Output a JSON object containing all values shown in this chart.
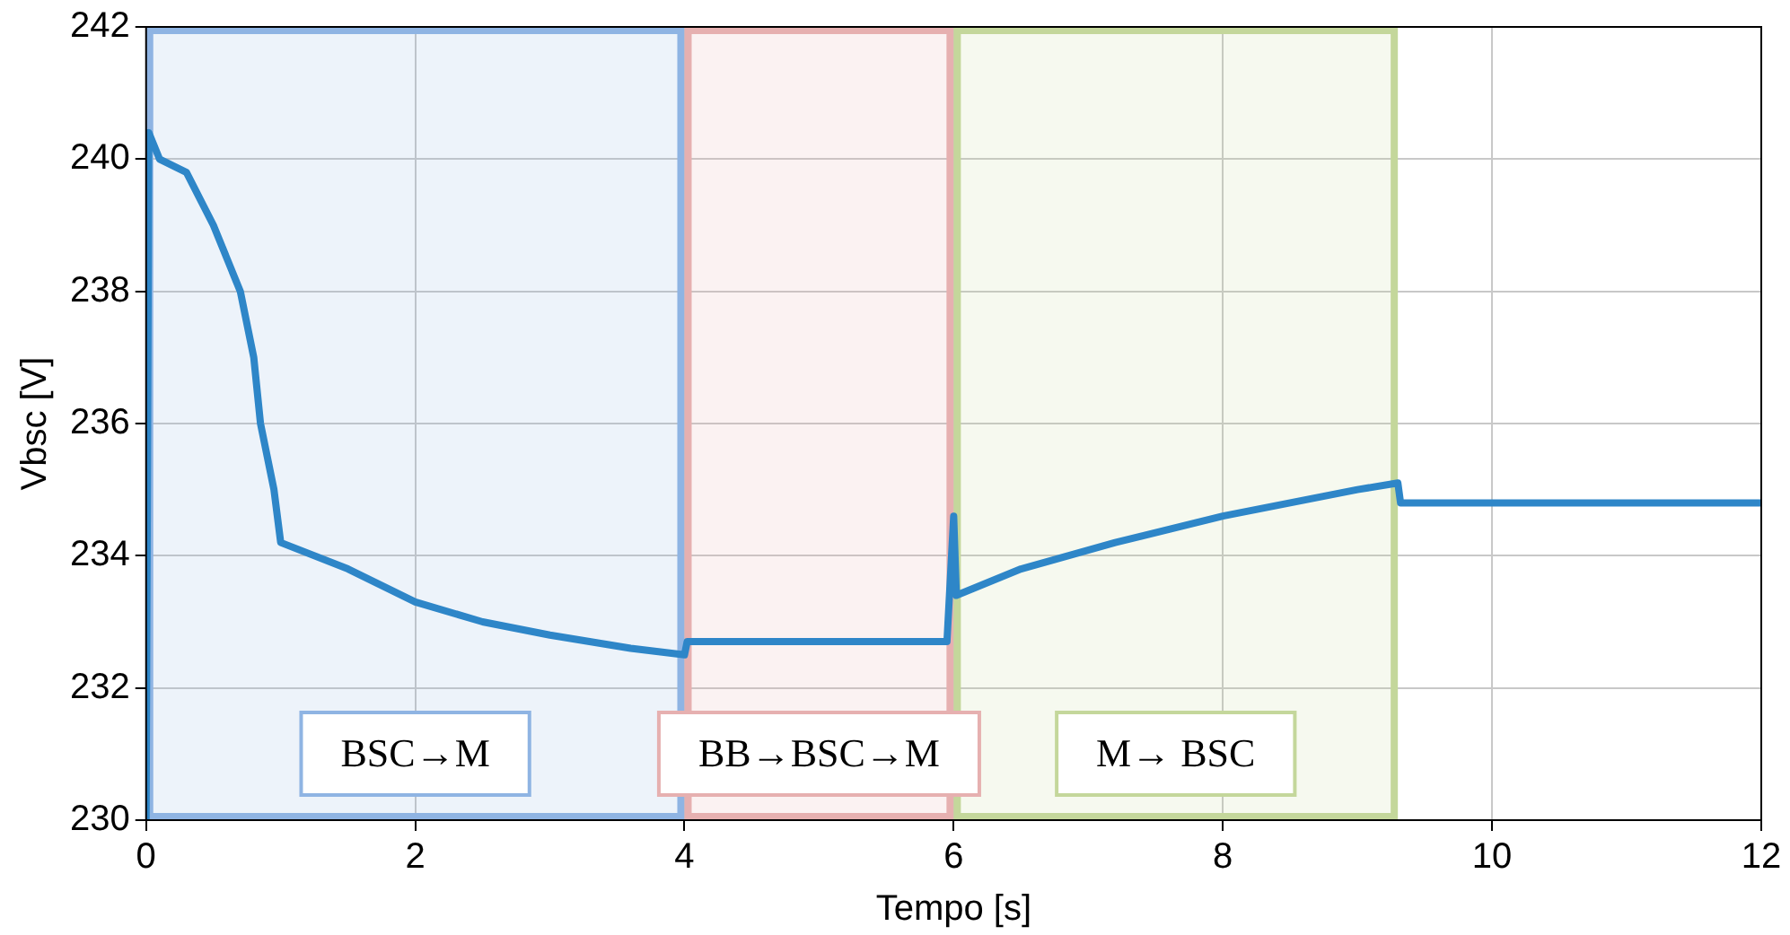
{
  "chart_data": {
    "type": "line",
    "xlabel": "Tempo [s]",
    "ylabel": "Vbsc [V]",
    "x": [
      0,
      0.02,
      0.1,
      0.3,
      0.5,
      0.7,
      0.8,
      0.85,
      0.95,
      1.0,
      1.5,
      2,
      2.5,
      3,
      3.6,
      4,
      4.02,
      5.95,
      6,
      6.02,
      6.5,
      7.2,
      8,
      9,
      9.3,
      9.32,
      12
    ],
    "series": [
      {
        "color": "#2e86c8",
        "values": [
          230,
          240.4,
          240,
          239.8,
          239,
          238,
          237,
          236,
          235,
          234.2,
          233.8,
          233.3,
          233,
          232.8,
          232.6,
          232.5,
          232.7,
          232.7,
          234.6,
          233.4,
          233.8,
          234.2,
          234.6,
          235,
          235.1,
          234.8,
          234.8
        ]
      }
    ],
    "xlim": [
      0,
      12
    ],
    "ylim": [
      230,
      242
    ],
    "xticks": [
      0,
      2,
      4,
      6,
      8,
      10,
      12
    ],
    "yticks": [
      230,
      232,
      234,
      236,
      238,
      240,
      242
    ],
    "grid": true,
    "marker": "none",
    "line_style": "solid",
    "bands": [
      {
        "axis": "x",
        "from": 0,
        "to": 4,
        "label": "BSC→M",
        "color": "#8fb4e3"
      },
      {
        "axis": "x",
        "from": 4,
        "to": 6,
        "label": "BB→BSC→M",
        "color": "#e6b0b0"
      },
      {
        "axis": "x",
        "from": 6,
        "to": 9.3,
        "label": "M→ BSC",
        "color": "#c4d79b"
      }
    ]
  }
}
